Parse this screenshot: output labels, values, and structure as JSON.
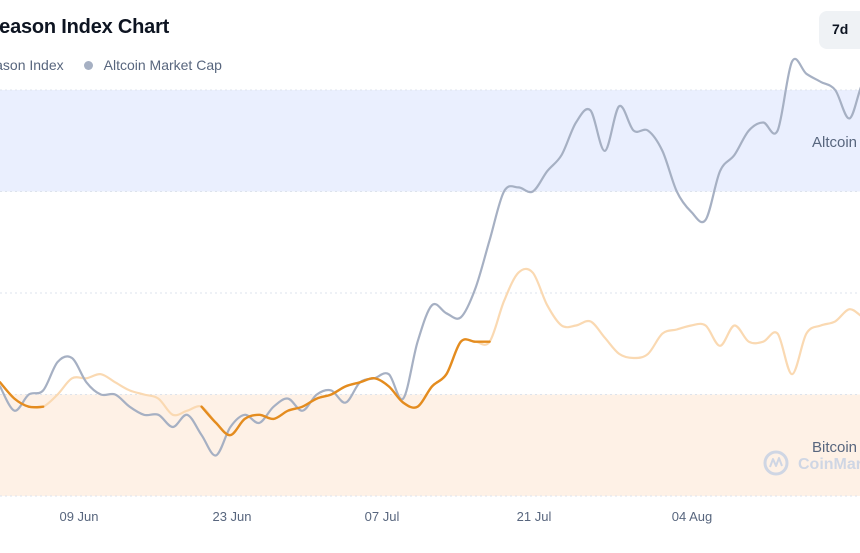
{
  "header": {
    "title": "Season Index Chart",
    "period_button": "7d"
  },
  "legend": [
    {
      "label": "Season Index",
      "color": "#f7931a"
    },
    {
      "label": "Altcoin Market Cap",
      "color": "#a6b0c3"
    }
  ],
  "watermark": "CoinMarketCap",
  "chart_data": {
    "type": "line",
    "bands": [
      {
        "label": "Altcoin Season",
        "from": 75,
        "to": 100,
        "color": "#eaeffe"
      },
      {
        "label": "Bitcoin Season",
        "from": 0,
        "to": 25,
        "color": "#fef1e6"
      }
    ],
    "x_ticks": [
      "09 Jun",
      "23 Jun",
      "07 Jul",
      "21 Jul",
      "04 Aug"
    ],
    "ylim": [
      0,
      100
    ],
    "grid": true,
    "series": [
      {
        "name": "Season Index",
        "color": "#f7931a",
        "highlight_color": "#e48c1f",
        "faded_color": "#fad9b2",
        "highlight_ranges": [
          [
            0,
            3
          ],
          [
            14,
            34
          ]
        ],
        "x": [
          0,
          3,
          6,
          9,
          12,
          15,
          18,
          21,
          24,
          27,
          30,
          33,
          36,
          39,
          42,
          45,
          48,
          51,
          54,
          57,
          60,
          63,
          66,
          69,
          72,
          75,
          78,
          81,
          84,
          87,
          90,
          93,
          96,
          99,
          102,
          105,
          108,
          111,
          114,
          117,
          120,
          123,
          126,
          129,
          132,
          135,
          138,
          141,
          144,
          147,
          150,
          153,
          156,
          159,
          162,
          165,
          168,
          171,
          174,
          177,
          180,
          183
        ],
        "y": [
          28,
          24,
          22,
          22,
          25,
          29,
          29,
          30,
          28,
          26,
          25,
          24,
          20,
          21,
          22,
          18,
          15,
          19,
          20,
          19,
          21,
          22,
          24,
          25,
          27,
          28,
          29,
          27,
          23,
          22,
          27,
          30,
          38,
          38,
          38,
          48,
          55,
          55,
          47,
          42,
          42,
          43,
          39,
          35,
          34,
          35,
          40,
          41,
          42,
          42,
          37,
          42,
          38,
          38,
          40,
          30,
          40,
          42,
          43,
          46,
          44,
          44
        ]
      },
      {
        "name": "Altcoin Market Cap",
        "color": "#a6b0c3",
        "faded_color": "#cbd4e3",
        "x": [
          0,
          3,
          6,
          9,
          12,
          15,
          18,
          21,
          24,
          27,
          30,
          33,
          36,
          39,
          42,
          45,
          48,
          51,
          54,
          57,
          60,
          63,
          66,
          69,
          72,
          75,
          78,
          81,
          84,
          87,
          90,
          93,
          96,
          99,
          102,
          105,
          108,
          111,
          114,
          117,
          120,
          123,
          126,
          129,
          132,
          135,
          138,
          141,
          144,
          147,
          150,
          153,
          156,
          159,
          162,
          165,
          168,
          171,
          174,
          177,
          180,
          183
        ],
        "y": [
          27,
          21,
          25,
          26,
          33,
          34,
          28,
          25,
          25,
          22,
          20,
          20,
          17,
          20,
          15,
          10,
          17,
          20,
          18,
          22,
          24,
          21,
          25,
          26,
          23,
          28,
          29,
          30,
          24,
          38,
          47,
          45,
          44,
          51,
          63,
          75,
          76,
          75,
          80,
          84,
          92,
          95,
          85,
          96,
          90,
          90,
          85,
          75,
          70,
          68,
          80,
          84,
          90,
          92,
          90,
          107,
          104,
          102,
          100,
          93,
          102,
          97
        ]
      }
    ]
  }
}
